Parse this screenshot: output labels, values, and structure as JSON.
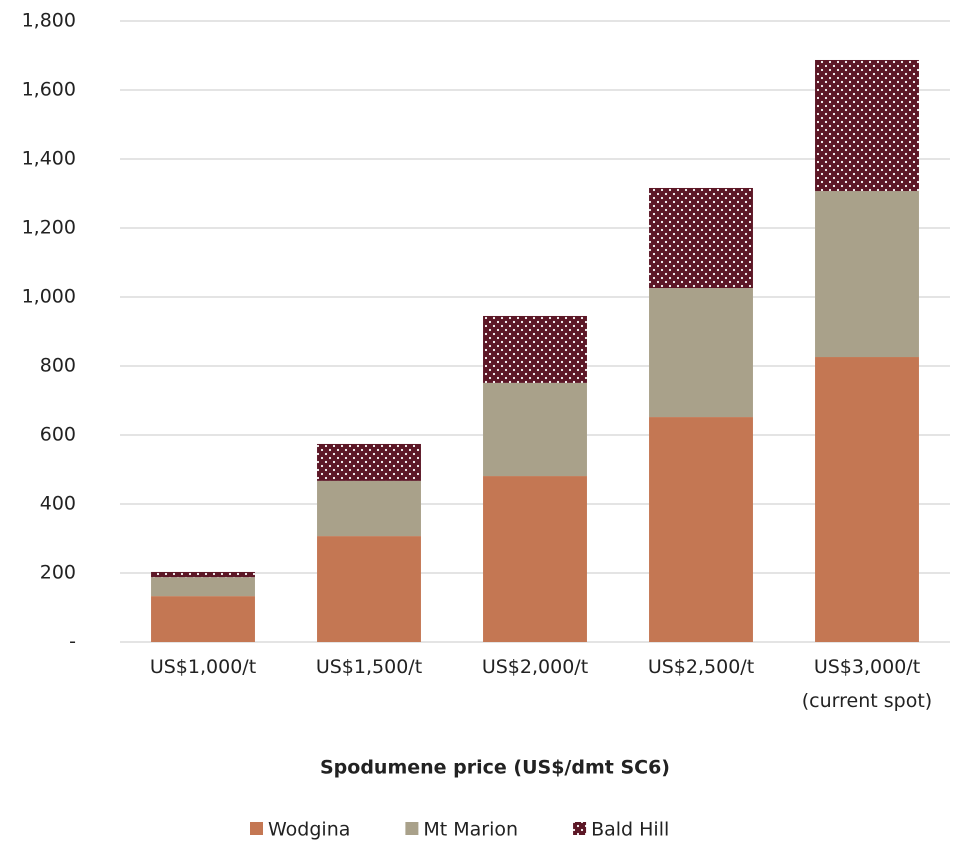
{
  "chart_data": {
    "type": "stacked_bar",
    "x_label": "Spodumene price (US$/dmt SC6)",
    "categories": [
      "US$1,000/t",
      "US$1,500/t",
      "US$2,000/t",
      "US$2,500/t",
      "US$3,000/t\n(current spot)"
    ],
    "series": [
      {
        "name": "Wodgina",
        "color": "#c47753",
        "values": [
          133,
          307,
          481,
          652,
          826
        ]
      },
      {
        "name": "Mt Marion",
        "color": "#a9a18a",
        "values": [
          55,
          160,
          270,
          374,
          481
        ]
      },
      {
        "name": "Bald Hill",
        "color": "#5c1726",
        "pattern": "dots",
        "values": [
          15,
          107,
          194,
          290,
          380
        ]
      }
    ],
    "ylim": [
      0,
      1800
    ],
    "yticks": [
      {
        "value": 0,
        "label": "-"
      },
      200,
      400,
      600,
      800,
      {
        "value": 1000,
        "label": "1,000"
      },
      {
        "value": 1200,
        "label": "1,200"
      },
      {
        "value": 1400,
        "label": "1,400"
      },
      {
        "value": 1600,
        "label": "1,600"
      },
      {
        "value": 1800,
        "label": "1,800"
      }
    ],
    "grid": true,
    "legend": "bottom"
  }
}
